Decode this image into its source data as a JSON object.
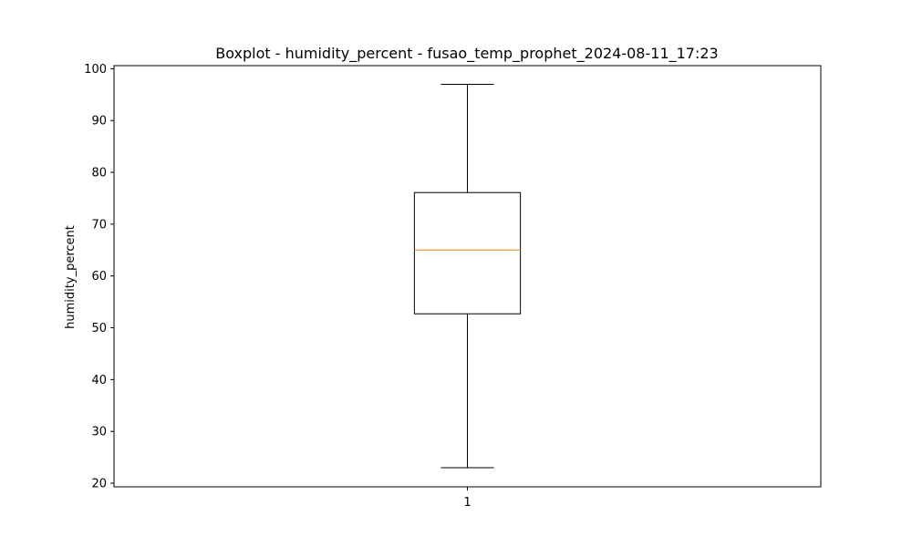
{
  "chart_data": {
    "type": "boxplot",
    "title": "Boxplot - humidity_percent - fusao_temp_prophet_2024-08-11_17:23",
    "xlabel": "",
    "ylabel": "humidity_percent",
    "ylim": [
      19.3,
      100.6
    ],
    "yticks": [
      20,
      30,
      40,
      50,
      60,
      70,
      80,
      90,
      100
    ],
    "categories": [
      "1"
    ],
    "boxes": [
      {
        "category": "1",
        "whisker_low": 23,
        "q1": 52.7,
        "median": 65,
        "q3": 76.1,
        "whisker_high": 97,
        "outliers": []
      }
    ],
    "grid": false,
    "colors": {
      "box": "#000000",
      "median": "#ff7f0e",
      "whisker": "#000000"
    }
  }
}
